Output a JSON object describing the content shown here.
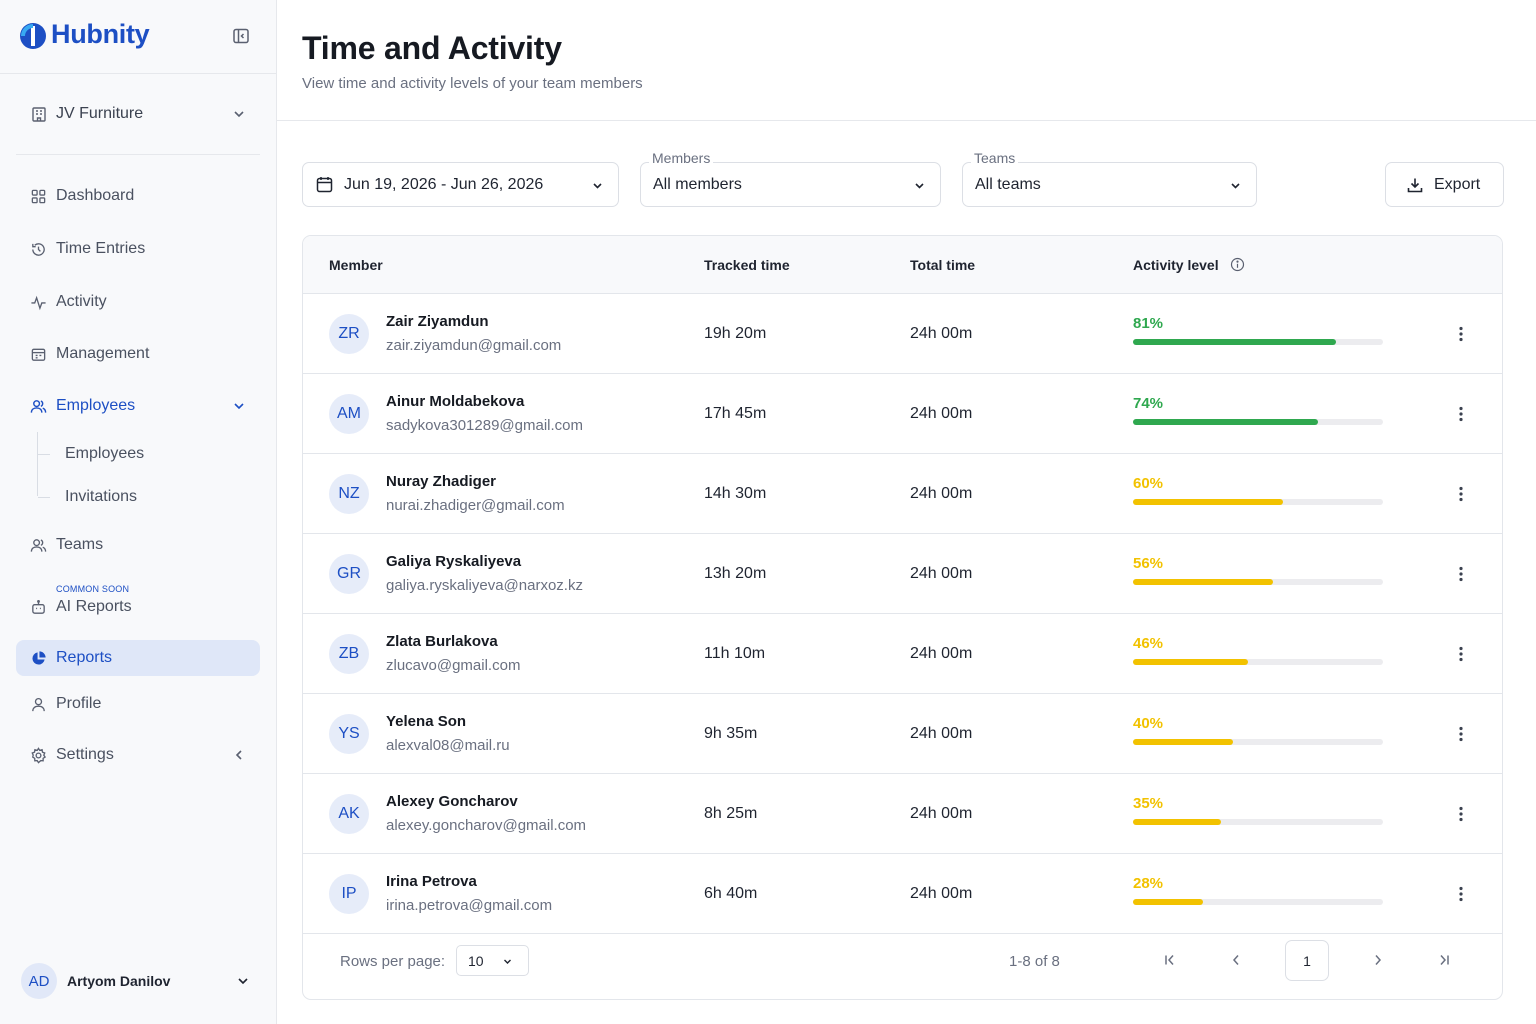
{
  "app": {
    "name": "Hubnity"
  },
  "sidebar": {
    "workspace": "JV Furniture",
    "nav": {
      "dashboard": "Dashboard",
      "time_entries": "Time Entries",
      "activity": "Activity",
      "management": "Management",
      "employees": "Employees",
      "teams": "Teams",
      "ai_reports": "AI Reports",
      "ai_reports_tag": "COMMON SOON",
      "reports": "Reports",
      "profile": "Profile",
      "settings": "Settings"
    },
    "employees_sub": [
      "Employees",
      "Invitations"
    ],
    "user": {
      "initials": "AD",
      "name": "Artyom Danilov"
    }
  },
  "header": {
    "title": "Time and Activity",
    "subtitle": "View time and activity levels of your team members"
  },
  "filters": {
    "date_range": "Jun 19, 2026 - Jun 26, 2026",
    "members_label": "Members",
    "members_value": "All members",
    "teams_label": "Teams",
    "teams_value": "All teams",
    "export_label": "Export"
  },
  "table": {
    "columns": {
      "member": "Member",
      "tracked": "Tracked time",
      "total": "Total time",
      "activity": "Activity level"
    },
    "rows": [
      {
        "initials": "ZR",
        "name": "Zair Ziyamdun",
        "email": "zair.ziyamdun@gmail.com",
        "tracked": "19h 20m",
        "total": "24h 00m",
        "activity_label": "81%",
        "activity": 0.81,
        "color": "#2fa84f"
      },
      {
        "initials": "AM",
        "name": "Ainur Moldabekova",
        "email": "sadykova301289@gmail.com",
        "tracked": "17h 45m",
        "total": "24h 00m",
        "activity_label": "74%",
        "activity": 0.74,
        "color": "#2fa84f"
      },
      {
        "initials": "NZ",
        "name": "Nuray Zhadiger",
        "email": "nurai.zhadiger@gmail.com",
        "tracked": "14h 30m",
        "total": "24h 00m",
        "activity_label": "60%",
        "activity": 0.6,
        "color": "#f2c200"
      },
      {
        "initials": "GR",
        "name": "Galiya Ryskaliyeva",
        "email": "galiya.ryskaliyeva@narxoz.kz",
        "tracked": "13h 20m",
        "total": "24h 00m",
        "activity_label": "56%",
        "activity": 0.56,
        "color": "#f2c200"
      },
      {
        "initials": "ZB",
        "name": "Zlata Burlakova",
        "email": "zlucavo@gmail.com",
        "tracked": "11h 10m",
        "total": "24h 00m",
        "activity_label": "46%",
        "activity": 0.46,
        "color": "#f2c200"
      },
      {
        "initials": "YS",
        "name": "Yelena Son",
        "email": "alexval08@mail.ru",
        "tracked": "9h 35m",
        "total": "24h 00m",
        "activity_label": "40%",
        "activity": 0.4,
        "color": "#f2c200"
      },
      {
        "initials": "AK",
        "name": "Alexey Goncharov",
        "email": "alexey.goncharov@gmail.com",
        "tracked": "8h 25m",
        "total": "24h 00m",
        "activity_label": "35%",
        "activity": 0.35,
        "color": "#f2c200"
      },
      {
        "initials": "IP",
        "name": "Irina Petrova",
        "email": "irina.petrova@gmail.com",
        "tracked": "6h 40m",
        "total": "24h 00m",
        "activity_label": "28%",
        "activity": 0.28,
        "color": "#f2c200"
      }
    ]
  },
  "pagination": {
    "rows_per_page_label": "Rows per page:",
    "rows_per_page": "10",
    "range": "1-8 of 8",
    "current_page": "1"
  },
  "colors": {
    "brand": "#1d4fc4",
    "high_activity": "#2fa84f",
    "medium_activity": "#f2c200",
    "nav_selected_bg": "#dfe7f8"
  }
}
